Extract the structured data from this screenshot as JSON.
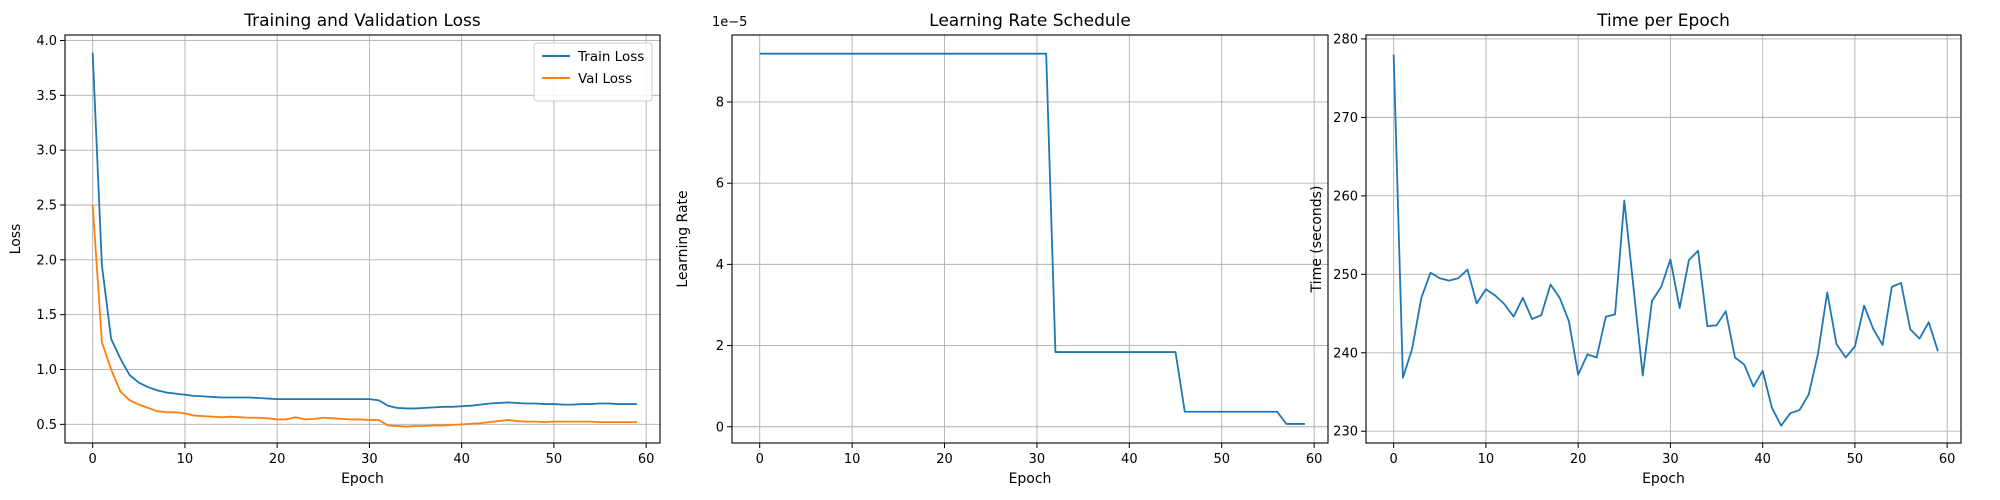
{
  "chart_data": [
    {
      "type": "line",
      "title": "Training and Validation Loss",
      "xlabel": "Epoch",
      "ylabel": "Loss",
      "xlim": [
        -3,
        61.5
      ],
      "ylim": [
        0.33,
        4.05
      ],
      "xticks": [
        0,
        10,
        20,
        30,
        40,
        50,
        60
      ],
      "yticks": [
        0.5,
        1.0,
        1.5,
        2.0,
        2.5,
        3.0,
        3.5,
        4.0
      ],
      "ytick_labels": [
        "0.5",
        "1.0",
        "1.5",
        "2.0",
        "2.5",
        "3.0",
        "3.5",
        "4.0"
      ],
      "grid": true,
      "legend": "top-right",
      "series": [
        {
          "name": "Train Loss",
          "color": "#1f77b4",
          "values": [
            3.89,
            1.95,
            1.28,
            1.1,
            0.95,
            0.88,
            0.84,
            0.81,
            0.79,
            0.78,
            0.77,
            0.76,
            0.755,
            0.75,
            0.745,
            0.745,
            0.745,
            0.745,
            0.74,
            0.735,
            0.73,
            0.73,
            0.73,
            0.73,
            0.73,
            0.73,
            0.73,
            0.73,
            0.73,
            0.73,
            0.73,
            0.72,
            0.67,
            0.65,
            0.645,
            0.645,
            0.65,
            0.655,
            0.66,
            0.66,
            0.665,
            0.67,
            0.68,
            0.69,
            0.695,
            0.7,
            0.695,
            0.69,
            0.69,
            0.685,
            0.685,
            0.68,
            0.68,
            0.685,
            0.685,
            0.69,
            0.69,
            0.685,
            0.685,
            0.685
          ]
        },
        {
          "name": "Val Loss",
          "color": "#ff7f0e",
          "values": [
            2.5,
            1.25,
            1.0,
            0.8,
            0.72,
            0.68,
            0.65,
            0.62,
            0.61,
            0.61,
            0.6,
            0.58,
            0.575,
            0.57,
            0.565,
            0.57,
            0.565,
            0.56,
            0.56,
            0.555,
            0.545,
            0.545,
            0.565,
            0.545,
            0.55,
            0.56,
            0.555,
            0.55,
            0.545,
            0.545,
            0.54,
            0.54,
            0.49,
            0.485,
            0.48,
            0.485,
            0.485,
            0.49,
            0.49,
            0.495,
            0.5,
            0.505,
            0.51,
            0.52,
            0.53,
            0.54,
            0.53,
            0.525,
            0.525,
            0.52,
            0.525,
            0.525,
            0.525,
            0.525,
            0.525,
            0.52,
            0.52,
            0.52,
            0.52,
            0.52
          ]
        }
      ]
    },
    {
      "type": "line",
      "title": "Learning Rate Schedule",
      "xlabel": "Epoch",
      "ylabel": "Learning Rate",
      "scale_label": "1e−5",
      "xlim": [
        -3,
        61.5
      ],
      "ylim": [
        -4e-06,
        9.65e-05
      ],
      "xticks": [
        0,
        10,
        20,
        30,
        40,
        50,
        60
      ],
      "yticks": [
        0,
        2e-05,
        4e-05,
        6e-05,
        8e-05
      ],
      "ytick_labels": [
        "0",
        "2",
        "4",
        "6",
        "8"
      ],
      "grid": true,
      "series": [
        {
          "color": "#1f77b4",
          "values": [
            9.19e-05,
            9.19e-05,
            9.19e-05,
            9.19e-05,
            9.19e-05,
            9.19e-05,
            9.19e-05,
            9.19e-05,
            9.19e-05,
            9.19e-05,
            9.19e-05,
            9.19e-05,
            9.19e-05,
            9.19e-05,
            9.19e-05,
            9.19e-05,
            9.19e-05,
            9.19e-05,
            9.19e-05,
            9.19e-05,
            9.19e-05,
            9.19e-05,
            9.19e-05,
            9.19e-05,
            9.19e-05,
            9.19e-05,
            9.19e-05,
            9.19e-05,
            9.19e-05,
            9.19e-05,
            9.19e-05,
            9.19e-05,
            1.84e-05,
            1.84e-05,
            1.84e-05,
            1.84e-05,
            1.84e-05,
            1.84e-05,
            1.84e-05,
            1.84e-05,
            1.84e-05,
            1.84e-05,
            1.84e-05,
            1.84e-05,
            1.84e-05,
            1.84e-05,
            3.7e-06,
            3.7e-06,
            3.7e-06,
            3.7e-06,
            3.7e-06,
            3.7e-06,
            3.7e-06,
            3.7e-06,
            3.7e-06,
            3.7e-06,
            3.7e-06,
            7e-07,
            7e-07,
            7e-07
          ]
        }
      ]
    },
    {
      "type": "line",
      "title": "Time per Epoch",
      "xlabel": "Epoch",
      "ylabel": "Time (seconds)",
      "xlim": [
        -3,
        61.5
      ],
      "ylim": [
        228.5,
        280.5
      ],
      "xticks": [
        0,
        10,
        20,
        30,
        40,
        50,
        60
      ],
      "yticks": [
        230,
        240,
        250,
        260,
        270,
        280
      ],
      "ytick_labels": [
        "230",
        "240",
        "250",
        "260",
        "270",
        "280"
      ],
      "grid": true,
      "series": [
        {
          "color": "#1f77b4",
          "values": [
            278.0,
            236.8,
            240.5,
            247.0,
            250.2,
            249.5,
            249.2,
            249.5,
            250.6,
            246.3,
            248.1,
            247.3,
            246.2,
            244.6,
            247.0,
            244.3,
            244.8,
            248.7,
            247.0,
            244.0,
            237.2,
            239.8,
            239.4,
            244.6,
            244.9,
            259.4,
            248.3,
            237.1,
            246.6,
            248.4,
            251.9,
            245.7,
            251.8,
            253.0,
            243.4,
            243.5,
            245.3,
            239.4,
            238.5,
            235.7,
            237.7,
            233.0,
            230.7,
            232.3,
            232.7,
            234.7,
            239.9,
            247.7,
            241.1,
            239.4,
            240.8,
            246.0,
            243.0,
            241.0,
            248.4,
            248.9,
            243.0,
            241.8,
            243.9,
            240.2
          ]
        }
      ]
    }
  ]
}
